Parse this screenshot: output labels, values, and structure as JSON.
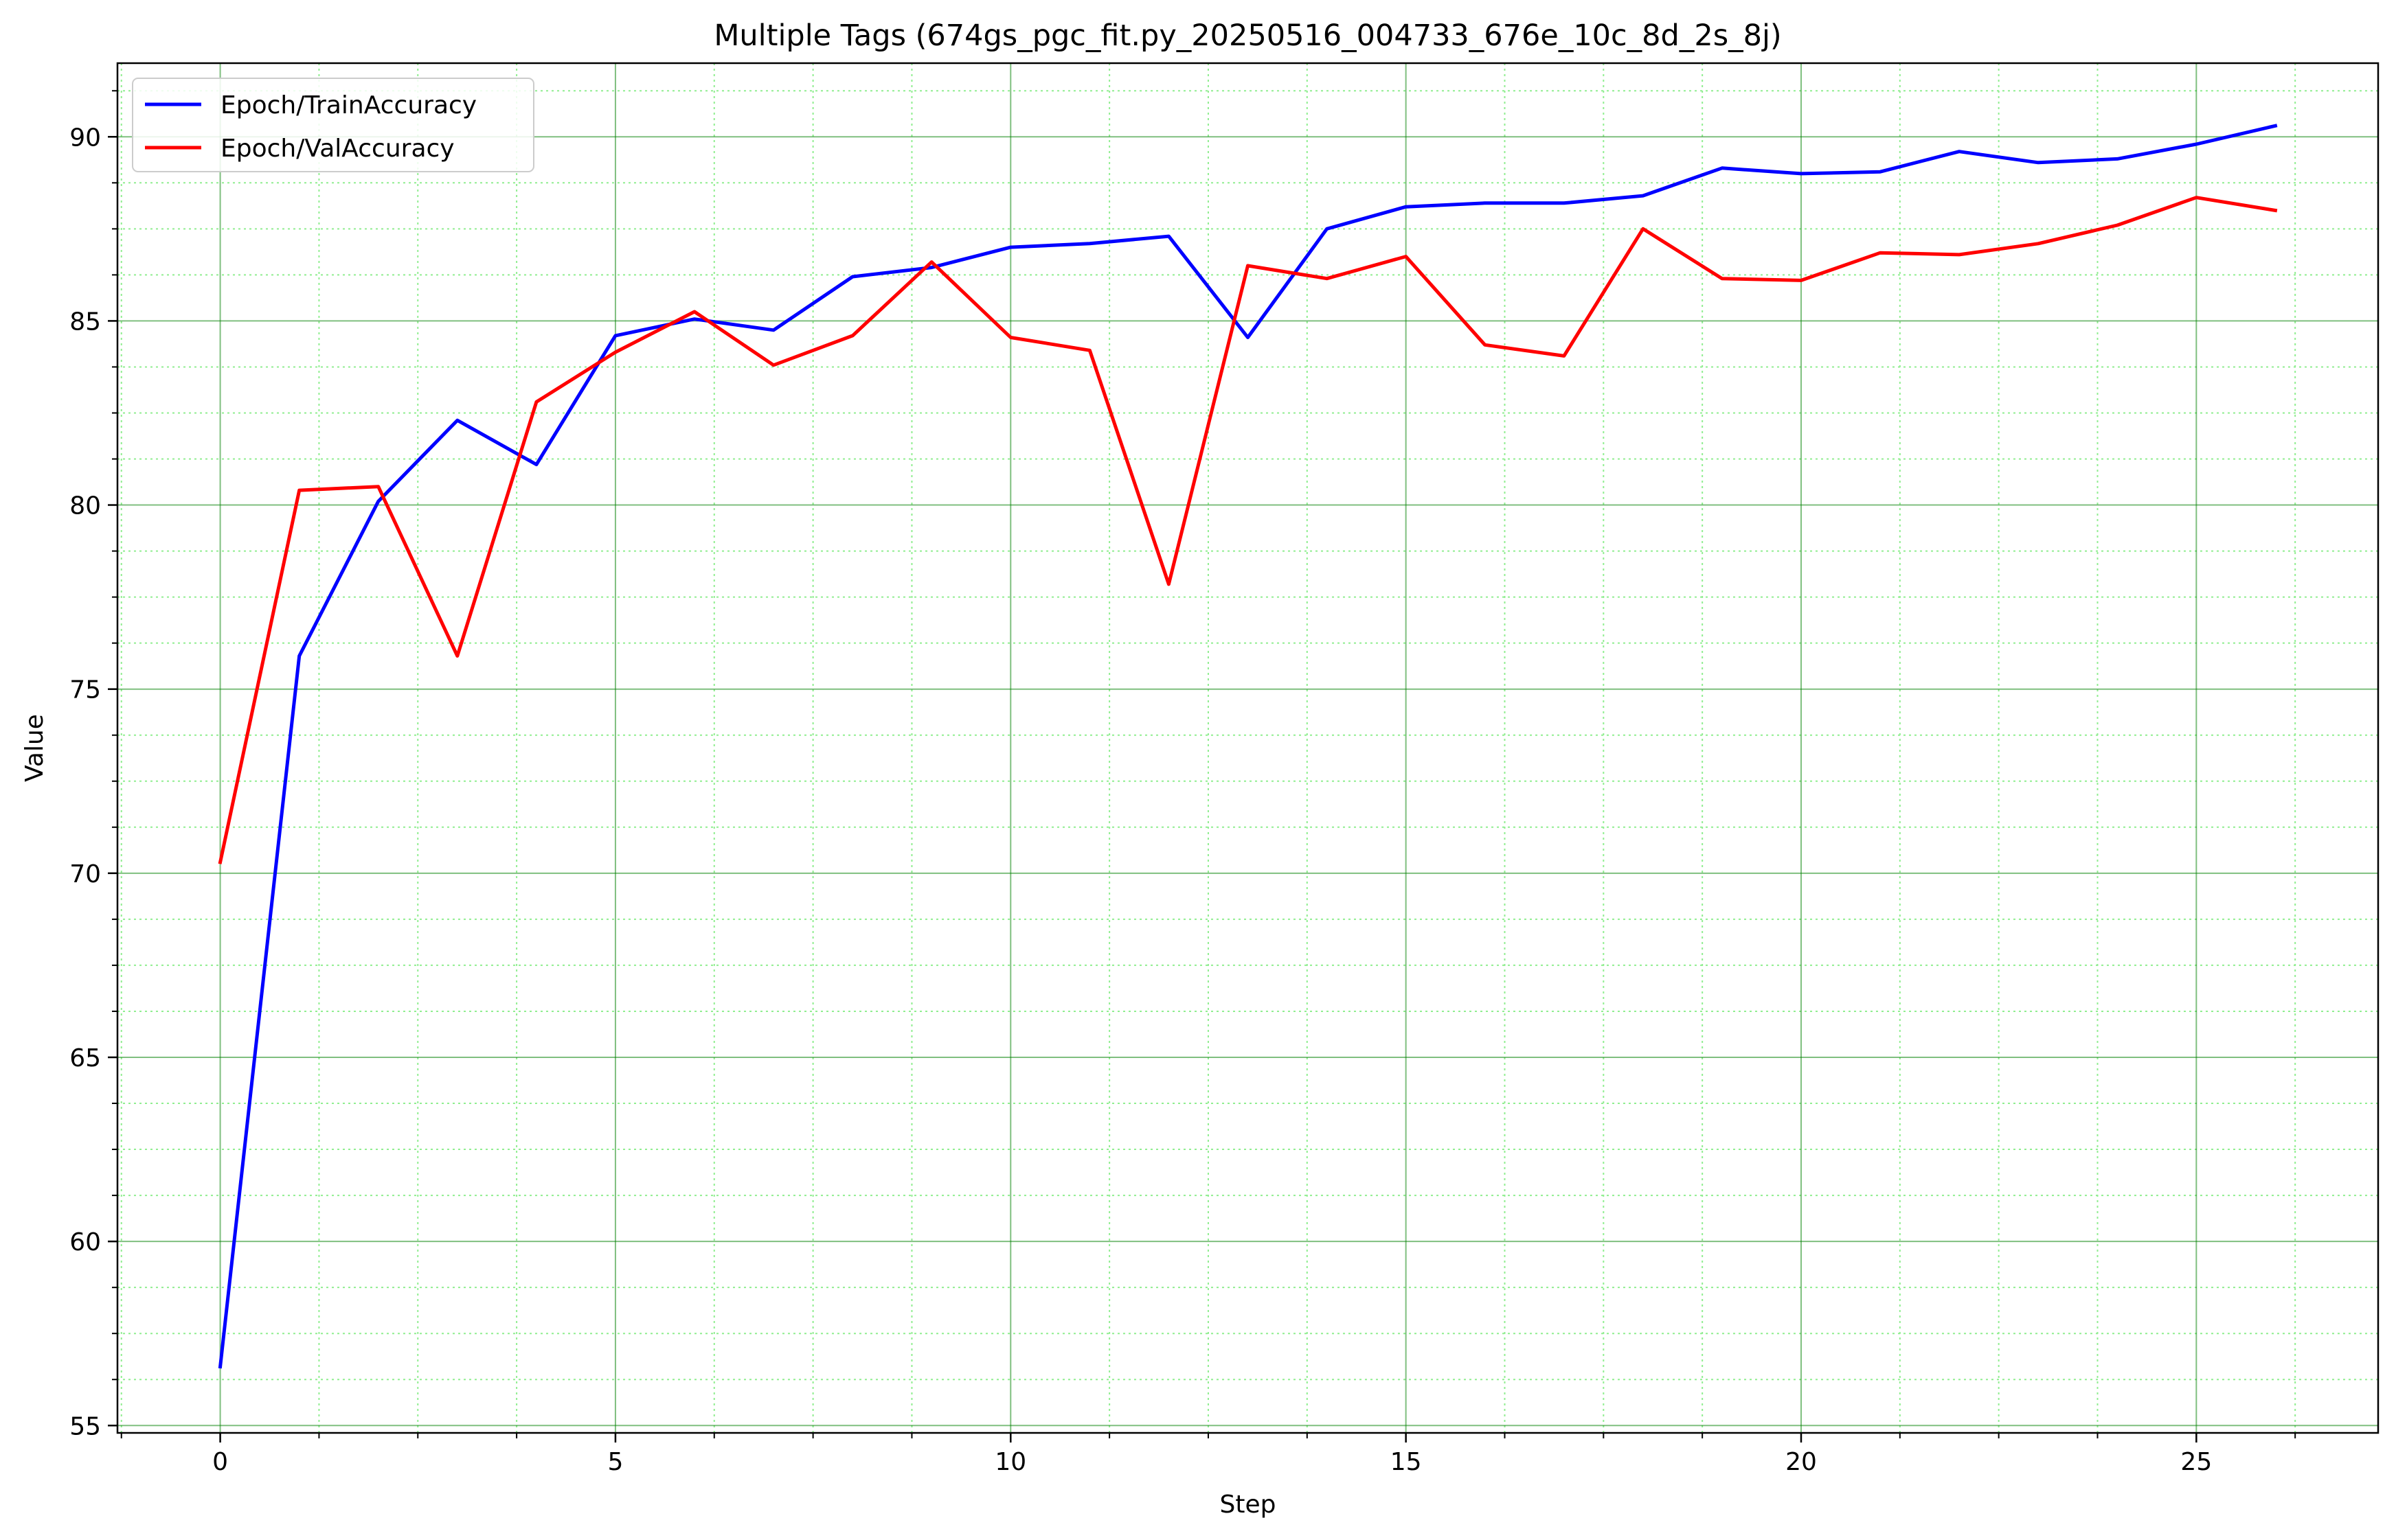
{
  "chart_data": {
    "type": "line",
    "title": "Multiple Tags (674gs_pgc_fit.py_20250516_004733_676e_10c_8d_2s_8j)",
    "xlabel": "Step",
    "ylabel": "Value",
    "xlim": [
      -1.3,
      27.3
    ],
    "ylim": [
      54.8,
      92.0
    ],
    "xticks": [
      0,
      5,
      10,
      15,
      20,
      25
    ],
    "yticks": [
      55,
      60,
      65,
      70,
      75,
      80,
      85,
      90
    ],
    "x_minor_step": 1.25,
    "y_minor_step": 1.25,
    "grid": true,
    "grid_color": "#008000",
    "minor_grid_color": "#90ee90",
    "legend_position": "top-left",
    "x": [
      0,
      1,
      2,
      3,
      4,
      5,
      6,
      7,
      8,
      9,
      10,
      11,
      12,
      13,
      14,
      15,
      16,
      17,
      18,
      19,
      20,
      21,
      22,
      23,
      24,
      25,
      26
    ],
    "series": [
      {
        "name": "Epoch/TrainAccuracy",
        "color": "#0000ff",
        "values": [
          56.6,
          75.9,
          80.1,
          82.3,
          81.1,
          84.6,
          85.05,
          84.75,
          86.2,
          86.45,
          87.0,
          87.1,
          87.3,
          84.55,
          87.5,
          88.1,
          88.2,
          88.2,
          88.4,
          89.15,
          89.0,
          89.05,
          89.6,
          89.3,
          89.4,
          89.8,
          90.3
        ]
      },
      {
        "name": "Epoch/ValAccuracy",
        "color": "#ff0000",
        "values": [
          70.3,
          80.4,
          80.5,
          75.9,
          82.8,
          84.15,
          85.25,
          83.8,
          84.6,
          86.6,
          84.55,
          84.2,
          77.85,
          86.5,
          86.15,
          86.75,
          84.35,
          84.05,
          87.5,
          86.15,
          86.1,
          86.85,
          86.8,
          87.1,
          87.6,
          88.35,
          88.0
        ]
      }
    ]
  }
}
